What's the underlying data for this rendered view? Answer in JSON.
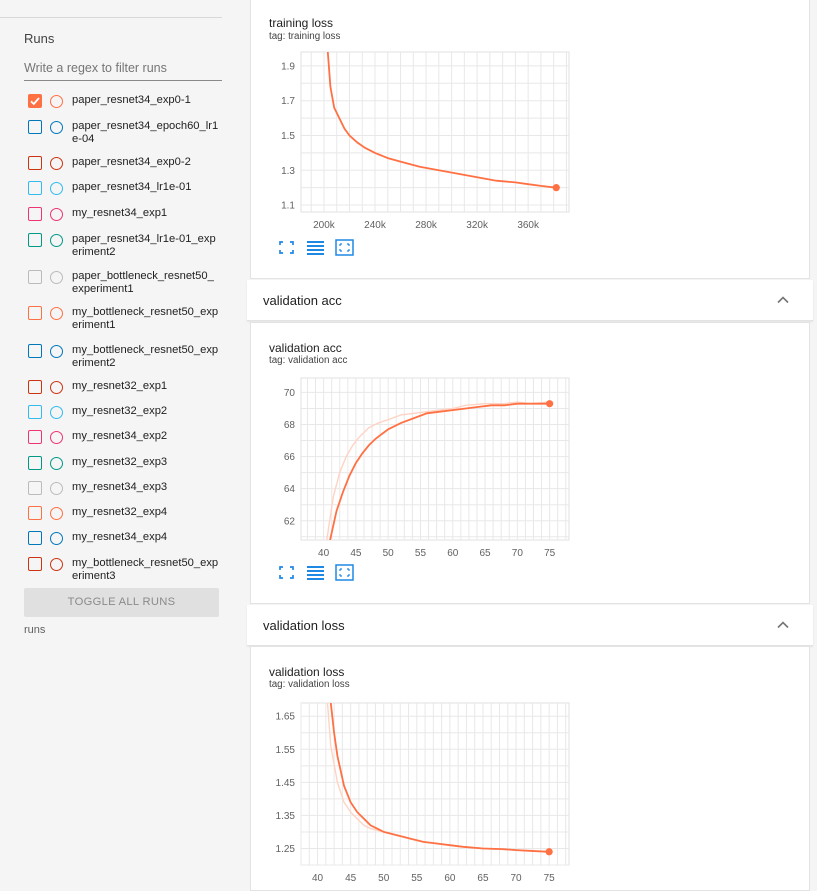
{
  "sidebar": {
    "title": "Runs",
    "filter_placeholder": "Write a regex to filter runs",
    "toggle_label": "TOGGLE ALL RUNS",
    "footer": "runs",
    "runs": [
      {
        "name": "paper_resnet34_exp0-1",
        "color": "#ff7043",
        "checked": true
      },
      {
        "name": "paper_resnet34_epoch60_lr1e-04",
        "color": "#0077bb",
        "checked": false
      },
      {
        "name": "paper_resnet34_exp0-2",
        "color": "#cc3311",
        "checked": false
      },
      {
        "name": "paper_resnet34_lr1e-01",
        "color": "#33bbee",
        "checked": false
      },
      {
        "name": "my_resnet34_exp1",
        "color": "#ee3377",
        "checked": false
      },
      {
        "name": "paper_resnet34_lr1e-01_experiment2",
        "color": "#009988",
        "checked": false
      },
      {
        "name": "paper_bottleneck_resnet50_experiment1",
        "color": "#bbbbbb",
        "checked": false
      },
      {
        "name": "my_bottleneck_resnet50_experiment1",
        "color": "#ff7043",
        "checked": false
      },
      {
        "name": "my_bottleneck_resnet50_experiment2",
        "color": "#0077bb",
        "checked": false
      },
      {
        "name": "my_resnet32_exp1",
        "color": "#cc3311",
        "checked": false
      },
      {
        "name": "my_resnet32_exp2",
        "color": "#33bbee",
        "checked": false
      },
      {
        "name": "my_resnet34_exp2",
        "color": "#ee3377",
        "checked": false
      },
      {
        "name": "my_resnet32_exp3",
        "color": "#009988",
        "checked": false
      },
      {
        "name": "my_resnet34_exp3",
        "color": "#bbbbbb",
        "checked": false
      },
      {
        "name": "my_resnet32_exp4",
        "color": "#ff7043",
        "checked": false
      },
      {
        "name": "my_resnet34_exp4",
        "color": "#0077bb",
        "checked": false
      },
      {
        "name": "my_bottleneck_resnet50_experiment3",
        "color": "#cc3311",
        "checked": false
      }
    ]
  },
  "cards": {
    "acc_header": "validation acc",
    "loss_header": "validation loss"
  },
  "icons": [
    "fullscreen-icon",
    "log-scale-icon",
    "fit-domain-icon",
    "chevron-up-icon",
    "checkmark-icon"
  ],
  "accent_color": "#ff7043",
  "tool_color": "#1e88e5",
  "chart_data": [
    {
      "type": "line",
      "title": "training loss",
      "subtitle": "tag: training loss",
      "xlim": [
        182000,
        392000
      ],
      "ylim": [
        1.06,
        1.98
      ],
      "xticks": [
        200000,
        240000,
        280000,
        320000,
        360000
      ],
      "xtick_labels": [
        "200k",
        "240k",
        "280k",
        "320k",
        "360k"
      ],
      "yticks": [
        1.1,
        1.3,
        1.5,
        1.7,
        1.9
      ],
      "ytick_labels": [
        "1.1",
        "1.3",
        "1.5",
        "1.7",
        "1.9"
      ],
      "series": [
        {
          "color": "#ff7043",
          "x": [
            203000,
            205000,
            208000,
            212000,
            216000,
            220000,
            226000,
            232000,
            240000,
            250000,
            260000,
            275000,
            290000,
            305000,
            320000,
            335000,
            350000,
            360000,
            370000,
            382000
          ],
          "y": [
            1.98,
            1.78,
            1.66,
            1.6,
            1.54,
            1.5,
            1.46,
            1.43,
            1.4,
            1.37,
            1.35,
            1.32,
            1.3,
            1.28,
            1.26,
            1.24,
            1.23,
            1.22,
            1.21,
            1.2
          ]
        }
      ]
    },
    {
      "type": "line",
      "title": "validation acc",
      "subtitle": "tag: validation acc",
      "xlim": [
        36.5,
        78
      ],
      "ylim": [
        60.8,
        70.9
      ],
      "xticks": [
        40,
        45,
        50,
        55,
        60,
        65,
        70,
        75
      ],
      "xtick_labels": [
        "40",
        "45",
        "50",
        "55",
        "60",
        "65",
        "70",
        "75"
      ],
      "yticks": [
        62,
        64,
        66,
        68,
        70
      ],
      "ytick_labels": [
        "62",
        "64",
        "66",
        "68",
        "70"
      ],
      "series": [
        {
          "color": "#ff7043",
          "x": [
            41,
            42,
            43,
            44,
            45,
            46,
            47,
            48,
            49,
            50,
            52,
            54,
            56,
            58,
            60,
            62,
            64,
            66,
            68,
            70,
            72,
            75
          ],
          "y": [
            60.8,
            62.6,
            63.8,
            64.8,
            65.6,
            66.2,
            66.7,
            67.1,
            67.4,
            67.7,
            68.1,
            68.4,
            68.7,
            68.8,
            68.9,
            69.0,
            69.1,
            69.2,
            69.2,
            69.3,
            69.3,
            69.3
          ]
        },
        {
          "color": "#ffd3c4",
          "x": [
            40.5,
            41.5,
            42.5,
            43.5,
            44.5,
            45.5,
            47,
            48.5,
            50,
            52,
            54,
            56,
            58,
            60,
            62,
            65,
            68,
            70,
            72,
            75
          ],
          "y": [
            60.8,
            63.5,
            65.0,
            66.0,
            66.7,
            67.2,
            67.8,
            68.1,
            68.3,
            68.6,
            68.7,
            68.8,
            68.9,
            69.0,
            69.2,
            69.3,
            69.3,
            69.4,
            69.3,
            69.4
          ]
        }
      ]
    },
    {
      "type": "line",
      "title": "validation loss",
      "subtitle": "tag: validation loss",
      "xlim": [
        37.5,
        78
      ],
      "ylim": [
        1.2,
        1.69
      ],
      "xticks": [
        40,
        45,
        50,
        55,
        60,
        65,
        70,
        75
      ],
      "xtick_labels": [
        "40",
        "45",
        "50",
        "55",
        "60",
        "65",
        "70",
        "75"
      ],
      "yticks": [
        1.25,
        1.35,
        1.45,
        1.55,
        1.65
      ],
      "ytick_labels": [
        "1.25",
        "1.35",
        "1.45",
        "1.55",
        "1.65"
      ],
      "series": [
        {
          "color": "#ff7043",
          "x": [
            42,
            42.5,
            43,
            44,
            45,
            46,
            47,
            48,
            49,
            50,
            52,
            54,
            56,
            58,
            60,
            62,
            65,
            68,
            70,
            72,
            75
          ],
          "y": [
            1.69,
            1.6,
            1.53,
            1.44,
            1.39,
            1.36,
            1.34,
            1.32,
            1.31,
            1.3,
            1.29,
            1.28,
            1.27,
            1.265,
            1.26,
            1.255,
            1.25,
            1.248,
            1.245,
            1.243,
            1.24
          ]
        },
        {
          "color": "#ffd3c4",
          "x": [
            41.5,
            42,
            43,
            44,
            45,
            46,
            47,
            48,
            50,
            52,
            54,
            56,
            58,
            60,
            62,
            65,
            70,
            75
          ],
          "y": [
            1.69,
            1.56,
            1.45,
            1.39,
            1.36,
            1.34,
            1.32,
            1.31,
            1.3,
            1.29,
            1.28,
            1.27,
            1.265,
            1.26,
            1.255,
            1.25,
            1.245,
            1.24
          ]
        }
      ]
    }
  ]
}
